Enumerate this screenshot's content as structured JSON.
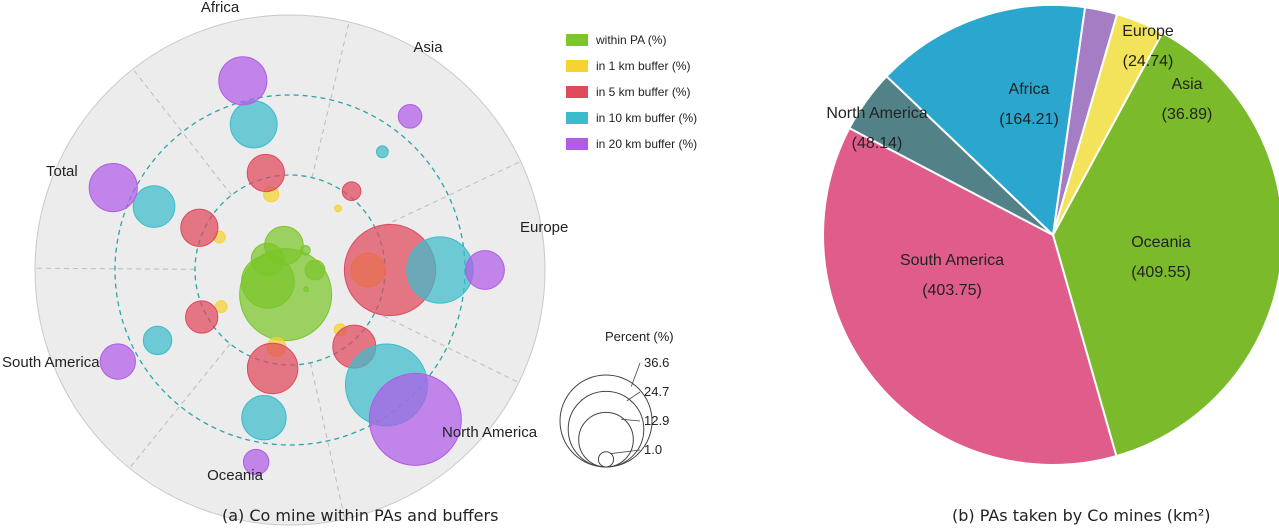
{
  "captions": {
    "a": "(a) Co mine within PAs and buffers",
    "b": "(b) PAs taken by Co mines (km²)"
  },
  "chart_data": [
    {
      "type": "polar-bubble",
      "regions": [
        "Africa",
        "Asia",
        "Europe",
        "North America",
        "Oceania",
        "South America",
        "Total"
      ],
      "legend": [
        {
          "label": "within PA (%)",
          "color": "#7cc62a"
        },
        {
          "label": "in 1 km buffer (%)",
          "color": "#f5d332"
        },
        {
          "label": "in 5 km buffer (%)",
          "color": "#e0485c"
        },
        {
          "label": "in 10 km buffer (%)",
          "color": "#3bbccc"
        },
        {
          "label": "in 20 km buffer (%)",
          "color": "#b05ce6"
        }
      ],
      "size_legend": {
        "title": "Percent (%)",
        "ticks": [
          36.6,
          24.7,
          12.9,
          1.0
        ]
      },
      "grid": "dashed",
      "series": [
        {
          "name": "within PA (%)",
          "values": {
            "Africa": 6.5,
            "Asia": 0.4,
            "Europe": 1.7,
            "North America": 0.1,
            "Oceania": 36.6,
            "South America": 12.0,
            "Total": 4.5
          }
        },
        {
          "name": "in 1 km buffer (%)",
          "values": {
            "Africa": 1.0,
            "Asia": 0.2,
            "Europe": 5.0,
            "North America": 0.6,
            "Oceania": 1.5,
            "South America": 0.6,
            "Total": 0.6
          }
        },
        {
          "name": "in 5 km buffer (%)",
          "values": {
            "Africa": 6.0,
            "Asia": 1.5,
            "Europe": 36.0,
            "North America": 8.0,
            "Oceania": 11.0,
            "South America": 4.5,
            "Total": 6.0
          }
        },
        {
          "name": "in 10 km buffer (%)",
          "values": {
            "Africa": 9.5,
            "Asia": 0.6,
            "Europe": 19.0,
            "North America": 29.0,
            "Oceania": 8.5,
            "South America": 3.5,
            "Total": 7.5
          }
        },
        {
          "name": "in 20 km buffer (%)",
          "values": {
            "Africa": 10.0,
            "Asia": 2.4,
            "Europe": 6.5,
            "North America": 36.6,
            "Oceania": 2.8,
            "South America": 5.4,
            "Total": 10.0
          }
        }
      ]
    },
    {
      "type": "pie",
      "slices": [
        {
          "label": "Europe",
          "value": 24.74,
          "text": "(24.74)",
          "color": "#a57dc5"
        },
        {
          "label": "Asia",
          "value": 36.89,
          "text": "(36.89)",
          "color": "#f2e35a"
        },
        {
          "label": "Oceania",
          "value": 409.55,
          "text": "(409.55)",
          "color": "#7aba2b"
        },
        {
          "label": "South America",
          "value": 403.75,
          "text": "(403.75)",
          "color": "#e05c8a"
        },
        {
          "label": "North America",
          "value": 48.14,
          "text": "(48.14)",
          "color": "#528288"
        },
        {
          "label": "Africa",
          "value": 164.21,
          "text": "(164.21)",
          "color": "#2ba7cf"
        }
      ]
    }
  ]
}
